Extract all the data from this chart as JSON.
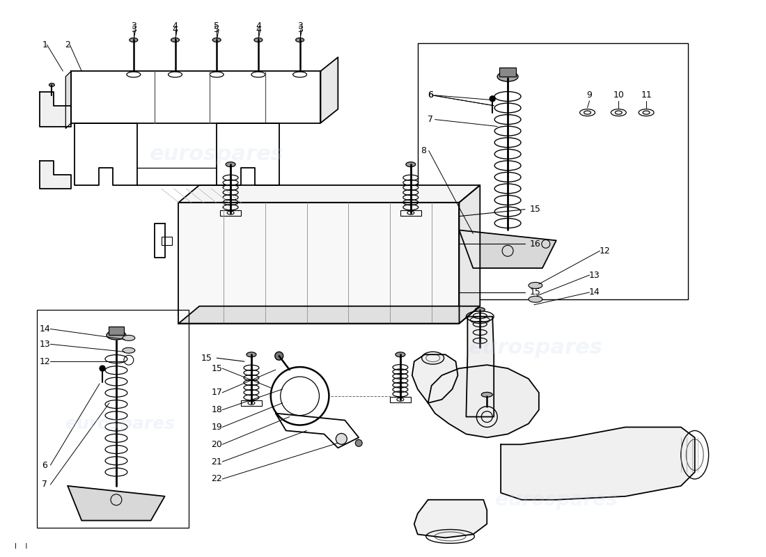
{
  "bg_color": "#ffffff",
  "line_color": "#000000",
  "watermark_color": "#c8d4e8",
  "watermark_text": "eurospares",
  "fig_width": 11.0,
  "fig_height": 8.0,
  "dpi": 100
}
